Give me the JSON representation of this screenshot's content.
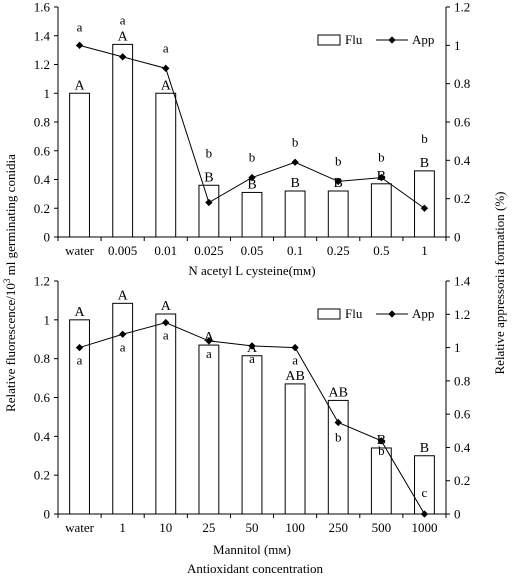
{
  "figure": {
    "shared_ylabel_left": "Relative fluorescence/10",
    "shared_ylabel_left_sup": "3",
    "shared_ylabel_left_tail": " ml germinating conidia",
    "shared_ylabel_right": "Relative appressoria formation (%)",
    "shared_xlabel": "Antioxidant concentration"
  },
  "chart_data": [
    {
      "type": "bar",
      "categories": [
        "water",
        "0.005",
        "0.01",
        "0.025",
        "0.05",
        "0.1",
        "0.25",
        "0.5",
        "1"
      ],
      "xlabel": "N acetyl L cysteine(mм)",
      "ylim": [
        0,
        1.6
      ],
      "yticks": [
        0,
        0.2,
        0.4,
        0.6,
        0.8,
        1,
        1.2,
        1.4,
        1.6
      ],
      "ylim_right": [
        0,
        1.2
      ],
      "yticks_right": [
        0,
        0.2,
        0.4,
        0.6,
        0.8,
        1,
        1.2
      ],
      "legend": {
        "position": "top-right",
        "entries": [
          "Flu",
          "App"
        ]
      },
      "series": [
        {
          "name": "Flu",
          "type": "bar",
          "axis": "left",
          "values": [
            1.0,
            1.34,
            1.0,
            0.36,
            0.31,
            0.32,
            0.32,
            0.37,
            0.46
          ],
          "labels": [
            "A",
            "A",
            "A",
            "B",
            "B",
            "B",
            "B",
            "B",
            "B"
          ]
        },
        {
          "name": "App",
          "type": "line",
          "axis": "right",
          "values": [
            1.0,
            0.94,
            0.88,
            0.18,
            0.31,
            0.39,
            0.29,
            0.31,
            0.15
          ],
          "labels": [
            "a",
            "a",
            "a",
            "b",
            "b",
            "b",
            "b",
            "b",
            "b"
          ]
        }
      ]
    },
    {
      "type": "bar",
      "categories": [
        "water",
        "1",
        "10",
        "25",
        "50",
        "100",
        "250",
        "500",
        "1000"
      ],
      "xlabel": "Mannitol (mм)",
      "ylim": [
        0,
        1.2
      ],
      "yticks": [
        0,
        0.2,
        0.4,
        0.6,
        0.8,
        1,
        1.2
      ],
      "ylim_right": [
        0,
        1.4
      ],
      "yticks_right": [
        0,
        0.2,
        0.4,
        0.6,
        0.8,
        1,
        1.2,
        1.4
      ],
      "legend": {
        "position": "top-right",
        "entries": [
          "Flu",
          "App"
        ]
      },
      "series": [
        {
          "name": "Flu",
          "type": "bar",
          "axis": "left",
          "values": [
            1.0,
            1.085,
            1.03,
            0.87,
            0.815,
            0.67,
            0.585,
            0.34,
            0.3
          ],
          "labels": [
            "A",
            "A",
            "A",
            "A",
            "A",
            "AB",
            "AB",
            "B",
            "B"
          ]
        },
        {
          "name": "App",
          "type": "line",
          "axis": "right",
          "values": [
            1.0,
            1.08,
            1.15,
            1.04,
            1.01,
            1.0,
            0.55,
            0.44,
            0.0
          ],
          "labels": [
            "a",
            "a",
            "a",
            "a",
            "a",
            "a",
            "b",
            "b",
            "c"
          ]
        }
      ]
    }
  ]
}
